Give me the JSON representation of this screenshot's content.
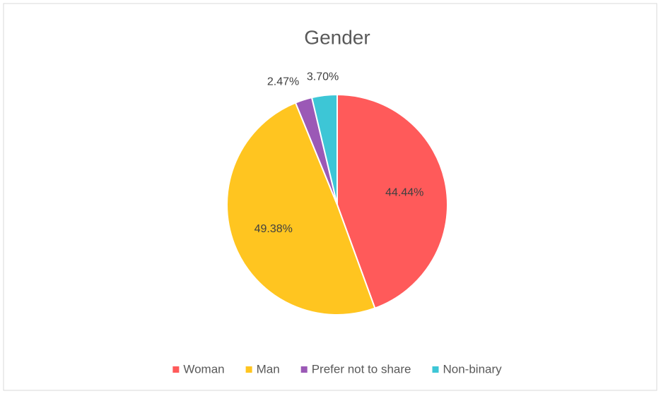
{
  "chart_data": {
    "type": "pie",
    "title": "Gender",
    "categories": [
      "Woman",
      "Man",
      "Prefer not to share",
      "Non-binary"
    ],
    "values": [
      44.44,
      49.38,
      2.47,
      3.7
    ],
    "value_labels": [
      "44.44%",
      "49.38%",
      "2.47%",
      "3.70%"
    ],
    "colors": [
      "#ff5a5a",
      "#ffc520",
      "#9b59b6",
      "#3dc6d6"
    ],
    "legend": "bottom"
  }
}
